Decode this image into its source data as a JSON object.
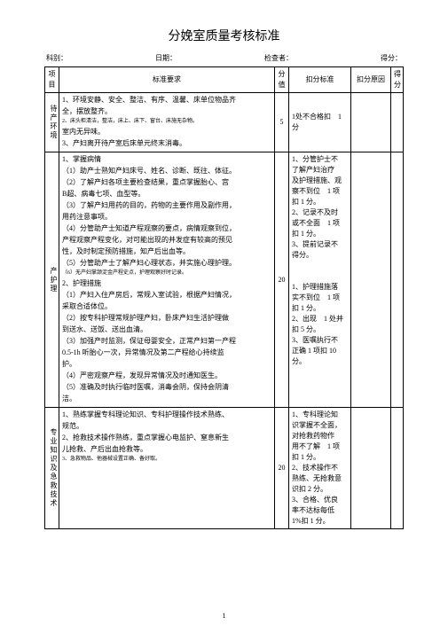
{
  "title": "分娩室质量考核标准",
  "header": {
    "dept": "科别：",
    "date": "日期：",
    "inspector": "检查者：",
    "score": "得分："
  },
  "th": {
    "item": "项目",
    "standard": "标准要求",
    "score": "分值",
    "deduct_std": "扣分标准",
    "deduct_reason": "扣分原因",
    "final": "得分"
  },
  "rows": [
    {
      "item": "待产环境",
      "standard_lines": [
        "1、环境安静、安全、整洁、有序、温馨、床单位物品齐",
        "全，摆放整齐。",
        "<small>2、床头柜清洁，整洁，床上、床下、窗台、床施无杂物。</small>",
        "室内无异味。",
        "3、产妇离开待产室后床单元终末消毒。"
      ],
      "score": "5",
      "deduct_std": [
        "1处不合格扣　1",
        "分"
      ]
    },
    {
      "item": "产护理",
      "standard_lines": [
        "1、掌握病情",
        "（1）助产士熟知产妇床号、姓名、诊断、既往、体征。",
        "（2）了解产妇各项主要检查结果，重点掌握胎心、宫",
        "B超、病毒七项、血型等。",
        "（3）了解产妇用药的目的，药物的主要作用及副作用，",
        "用药注意事项。",
        "（4）分管助产士知道产程观察的要点，病情观察到位，",
        "产程观察产程变化，对可能出现的并发症有较高的预见",
        "性，及时制定预防措施，知产后出血等。",
        "（5）分管助产士了解产妇心理状态，并实施心理护理。",
        "<small>（6）无产妇掌颔淀金产程史点，护理观察好时记录。</small>",
        "2、护理措施",
        "（1）产妇入住产房后，常规入室试验，根据产妇情况，",
        "采取合适体位。",
        "（2）按专科护理常规护理产妇，卧床产妇生活护理做",
        "到送水、送饭、送出血清。",
        "（3）加强产时监测，保证母婴安全，正常产妇第一产程",
        "0.5-1h 听胎心一次，异常情况及第二产程给心持续监",
        "护。",
        "（4）严密观察产程，发现异常情况及时通知医生。",
        "（5）准确及时执行临时医嘱，消毒会阴，保持会阴清",
        "洁。"
      ],
      "score": "20",
      "deduct_std": [
        "1、分管护士不",
        "了解产妇治疗",
        "及护理措施、观",
        "察不到位　1 项",
        "扣 1 分。",
        "2、记录不及时",
        "或不全面　1 项",
        "扣 1 分。",
        "3、提前记录不",
        "得分。",
        "",
        "",
        "1、护理措施落",
        "实不到位　1 项",
        "扣 1 分。",
        "2、出现　1 处并",
        "扣 5 分。",
        "3、医嘱执行不",
        "正确 1 项扣 10",
        "分。"
      ]
    },
    {
      "item": "专业知识及急救技术",
      "standard_lines": [
        "1、熟练掌握专科理论知识、专科护理操作技术熟练、",
        "规范。",
        "2、抢救技术操作熟练，重点掌握心电监护、窒息新生",
        "儿抢救、产后出血抢救等。",
        "<small>3、急救物品、他器械设置正确、备好取。</small>"
      ],
      "score": "20",
      "deduct_std": [
        "1、专科理论知",
        "识掌握不全面，",
        "对抢救药物作",
        "用不了解　1 项",
        "扣 1 分。",
        "2、技术操作不",
        "熟练、无抢救意",
        "识扣 2 分。",
        "3、合格、优良",
        "率不达标每低",
        "1%扣 1 分。"
      ]
    }
  ],
  "page_number": "1"
}
